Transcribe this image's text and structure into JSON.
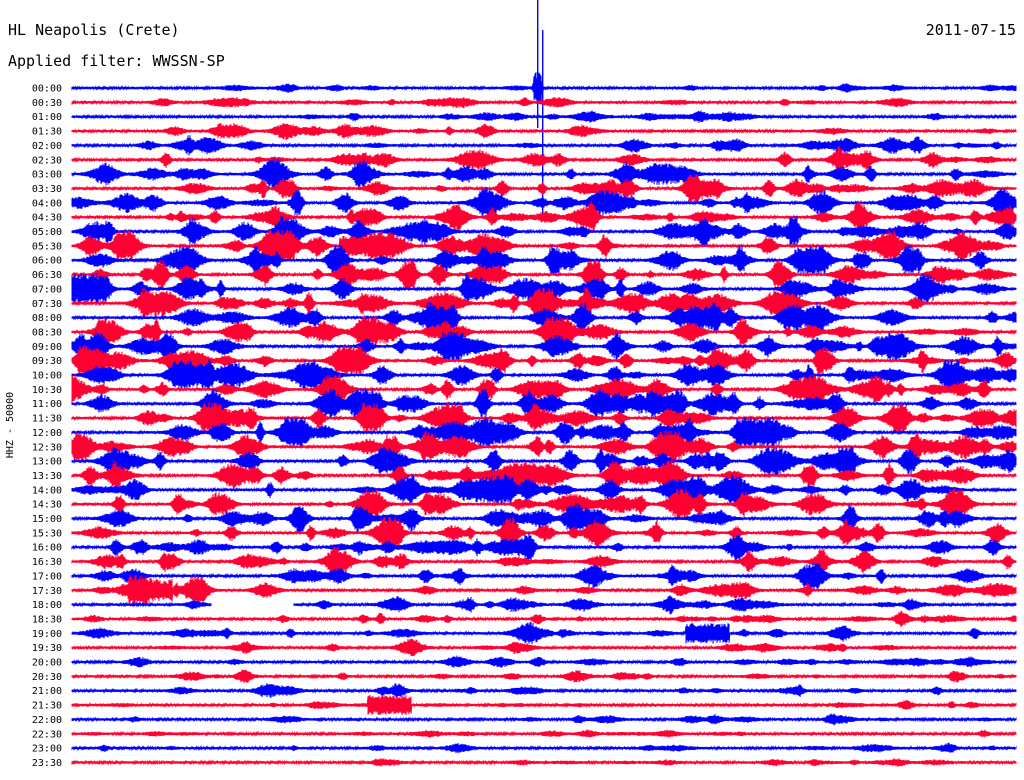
{
  "header": {
    "station": "HL Neapolis (Crete)",
    "date": "2011-07-15",
    "filter": "Applied filter: WWSSN-SP"
  },
  "chart_data": {
    "type": "line",
    "title": "HL Neapolis (Crete)",
    "subtitle": "Applied filter: WWSSN-SP",
    "ylabel": "HHZ - 50000",
    "xlabel": "",
    "x_range_minutes": [
      0,
      30
    ],
    "colors": [
      "#0000ff",
      "#ff0033"
    ],
    "rows": [
      "00:00",
      "00:30",
      "01:00",
      "01:30",
      "02:00",
      "02:30",
      "03:00",
      "03:30",
      "04:00",
      "04:30",
      "05:00",
      "05:30",
      "06:00",
      "06:30",
      "07:00",
      "07:30",
      "08:00",
      "08:30",
      "09:00",
      "09:30",
      "10:00",
      "10:30",
      "11:00",
      "11:30",
      "12:00",
      "12:30",
      "13:00",
      "13:30",
      "14:00",
      "14:30",
      "15:00",
      "15:30",
      "16:00",
      "16:30",
      "17:00",
      "17:30",
      "18:00",
      "18:30",
      "19:00",
      "19:30",
      "20:00",
      "20:30",
      "21:00",
      "21:30",
      "22:00",
      "22:30",
      "23:00",
      "23:30"
    ],
    "activity": [
      0.25,
      0.35,
      0.35,
      0.45,
      0.55,
      0.65,
      0.75,
      0.8,
      0.9,
      0.9,
      0.95,
      1.0,
      1.0,
      1.0,
      1.0,
      1.0,
      1.0,
      1.0,
      1.0,
      1.0,
      1.0,
      1.0,
      1.0,
      1.0,
      1.0,
      1.0,
      1.0,
      1.0,
      1.0,
      0.95,
      0.9,
      0.85,
      0.75,
      0.7,
      0.65,
      0.6,
      0.55,
      0.5,
      0.45,
      0.4,
      0.4,
      0.35,
      0.35,
      0.3,
      0.3,
      0.28,
      0.25,
      0.25
    ],
    "notable_events": [
      {
        "row": "00:00",
        "minute": 14.8,
        "note": "large spike spanning several traces"
      },
      {
        "row": "05:30",
        "minute": 9.2,
        "note": "saturated burst"
      },
      {
        "row": "17:30",
        "minute": 2.5,
        "note": "saturated burst"
      },
      {
        "row": "18:00",
        "minute": 4.5,
        "note": "data gap"
      },
      {
        "row": "19:00",
        "minute": 20.2,
        "note": "saturated burst"
      },
      {
        "row": "21:30",
        "minute": 10.1,
        "note": "saturated burst"
      }
    ]
  }
}
